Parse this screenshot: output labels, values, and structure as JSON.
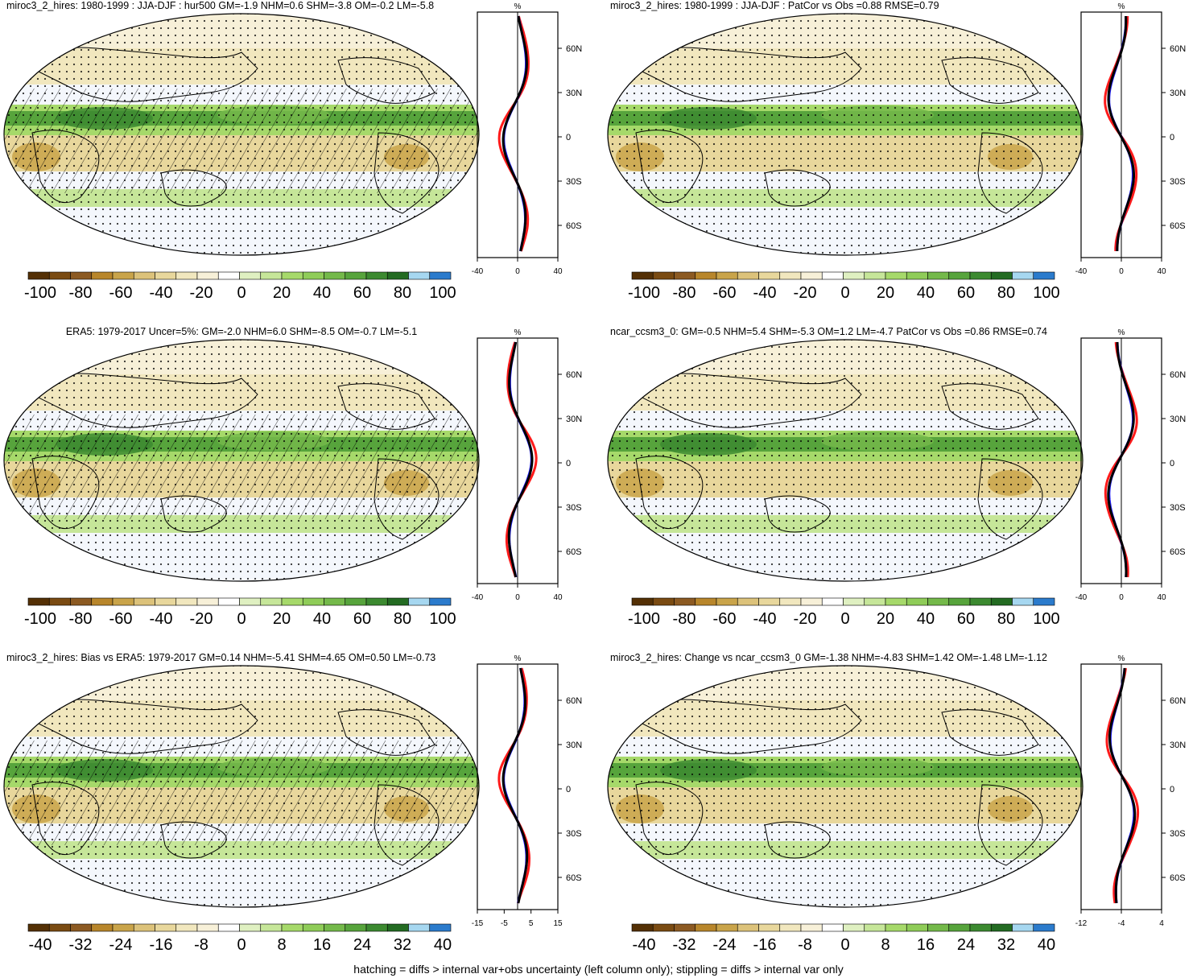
{
  "colors": {
    "brown": [
      "#543005",
      "#7a4b12",
      "#8c5a22",
      "#b8862b",
      "#c9a44a",
      "#dcc27a",
      "#e8d79c",
      "#f1e7be",
      "#f7f0d8",
      "#ffffff"
    ],
    "green": [
      "#ffffff",
      "#dff0c1",
      "#c6e699",
      "#a6d96a",
      "#8fcc58",
      "#74b94a",
      "#57a43c",
      "#3c8a30",
      "#236b22",
      "#a6d7f0",
      "#2b7bcc"
    ],
    "red_line": "#ff1a1a",
    "blue_line": "#1a1aff",
    "black_line": "#000000"
  },
  "footer_note": "hatching = diffs > internal var+obs uncertainty (left column only); stippling = diffs > internal var only",
  "colorbars": {
    "hur": [
      "-100",
      "-80",
      "-60",
      "-40",
      "-20",
      "0",
      "20",
      "40",
      "60",
      "80",
      "100"
    ],
    "diff": [
      "-40",
      "-32",
      "-24",
      "-16",
      "-8",
      "0",
      "8",
      "16",
      "24",
      "32",
      "40"
    ]
  },
  "lat_labels": [
    "60N",
    "30N",
    "0",
    "30S",
    "60S"
  ],
  "panels": [
    {
      "title": "miroc3_2_hires: 1980-1999 : JJA-DJF : hur500 GM=-1.9 NHM=0.6 SHM=-3.8 OM=-0.2 LM=-5.8",
      "zonal_unit": "%",
      "zonal_ticks": [
        "-40",
        "0",
        "40"
      ],
      "colorbar": "hur",
      "hatched": true,
      "centered_title": false
    },
    {
      "title": "miroc3_2_hires: 1980-1999 : JJA-DJF : PatCor vs Obs =0.88 RMSE=0.79",
      "zonal_unit": "%",
      "zonal_ticks": [
        "-40",
        "0",
        "40"
      ],
      "colorbar": "hur",
      "hatched": false,
      "centered_title": false
    },
    {
      "title": "ERA5: 1979-2017 Uncer=5%: GM=-2.0 NHM=6.0 SHM=-8.5 OM=-0.7 LM=-5.1",
      "zonal_unit": "%",
      "zonal_ticks": [
        "-40",
        "0",
        "40"
      ],
      "colorbar": "hur",
      "hatched": true,
      "centered_title": true
    },
    {
      "title": "ncar_ccsm3_0: GM=-0.5 NHM=5.4 SHM=-5.3 OM=1.2 LM=-4.7 PatCor vs Obs =0.86 RMSE=0.74",
      "zonal_unit": "%",
      "zonal_ticks": [
        "-40",
        "0",
        "40"
      ],
      "colorbar": "hur",
      "hatched": false,
      "centered_title": false
    },
    {
      "title": "miroc3_2_hires: Bias vs ERA5: 1979-2017 GM=0.14 NHM=-5.41 SHM=4.65 OM=0.50 LM=-0.73",
      "zonal_unit": "%",
      "zonal_ticks": [
        "-15",
        "-5",
        "5",
        "15"
      ],
      "colorbar": "diff",
      "hatched": true,
      "centered_title": false
    },
    {
      "title": "miroc3_2_hires: Change vs ncar_ccsm3_0 GM=-1.38 NHM=-4.83 SHM=1.42 OM=-1.48 LM=-1.12",
      "zonal_unit": "%",
      "zonal_ticks": [
        "-12",
        "-4",
        "4"
      ],
      "colorbar": "diff",
      "hatched": false,
      "centered_title": false
    }
  ]
}
